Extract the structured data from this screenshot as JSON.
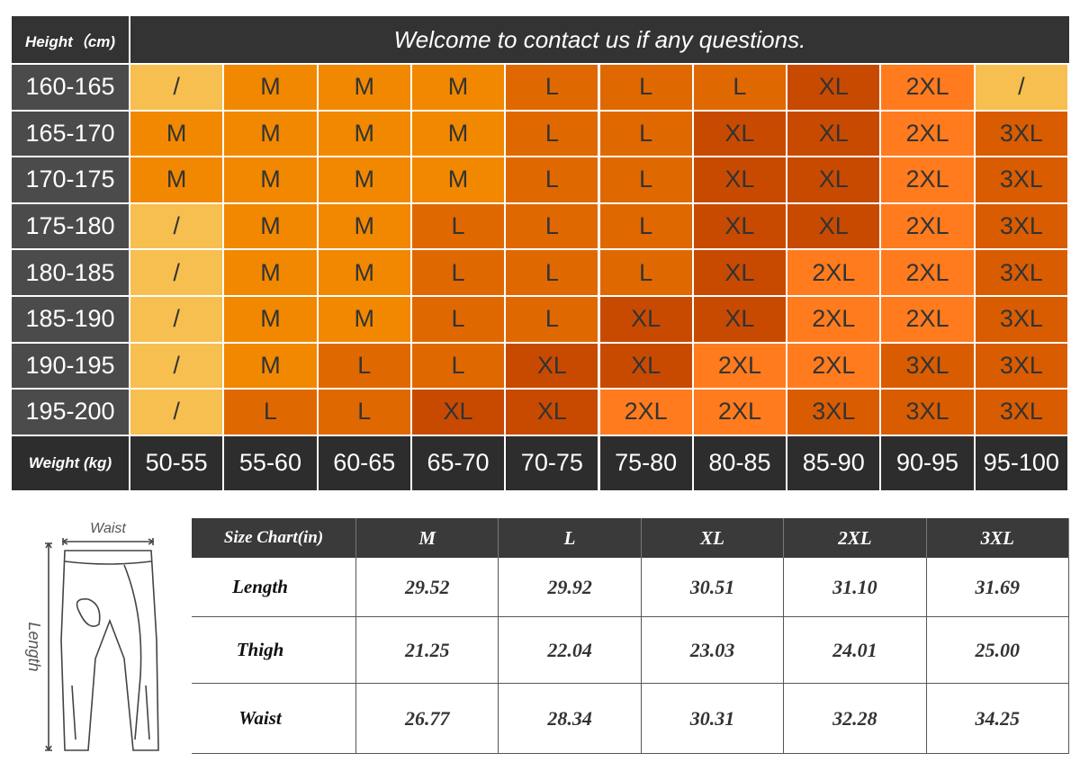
{
  "size_table": {
    "height_header": "Height（cm)",
    "note": "Welcome to contact us if any questions.",
    "weight_header": "Weight (kg)",
    "heights": [
      "160-165",
      "165-170",
      "170-175",
      "175-180",
      "180-185",
      "185-190",
      "190-195",
      "195-200"
    ],
    "weights": [
      "50-55",
      "55-60",
      "60-65",
      "65-70",
      "70-75",
      "75-80",
      "80-85",
      "85-90",
      "90-95",
      "95-100"
    ],
    "rows": [
      [
        "/",
        "M",
        "M",
        "M",
        "L",
        "L",
        "L",
        "XL",
        "2XL",
        "/"
      ],
      [
        "M",
        "M",
        "M",
        "M",
        "L",
        "L",
        "XL",
        "XL",
        "2XL",
        "3XL"
      ],
      [
        "M",
        "M",
        "M",
        "M",
        "L",
        "L",
        "XL",
        "XL",
        "2XL",
        "3XL"
      ],
      [
        "/",
        "M",
        "M",
        "L",
        "L",
        "L",
        "XL",
        "XL",
        "2XL",
        "3XL"
      ],
      [
        "/",
        "M",
        "M",
        "L",
        "L",
        "L",
        "XL",
        "2XL",
        "2XL",
        "3XL"
      ],
      [
        "/",
        "M",
        "M",
        "L",
        "L",
        "XL",
        "XL",
        "2XL",
        "2XL",
        "3XL"
      ],
      [
        "/",
        "M",
        "L",
        "L",
        "XL",
        "XL",
        "2XL",
        "2XL",
        "3XL",
        "3XL"
      ],
      [
        "/",
        "L",
        "L",
        "XL",
        "XL",
        "2XL",
        "2XL",
        "3XL",
        "3XL",
        "3XL"
      ]
    ],
    "colors": {
      "/": "#f7bf4f",
      "M": "#f18800",
      "L": "#e06800",
      "XL": "#c84a00",
      "2XL": "#ff7b1d",
      "3XL": "#d95c00"
    }
  },
  "inch_table": {
    "header": [
      "Size Chart(in)",
      "M",
      "L",
      "XL",
      "2XL",
      "3XL"
    ],
    "rows": [
      {
        "label": "Length",
        "values": [
          "29.52",
          "29.92",
          "30.51",
          "31.10",
          "31.69"
        ]
      },
      {
        "label": "Thigh",
        "values": [
          "21.25",
          "22.04",
          "23.03",
          "24.01",
          "25.00"
        ]
      },
      {
        "label": "Waist",
        "values": [
          "26.77",
          "28.34",
          "30.31",
          "32.28",
          "34.25"
        ]
      }
    ]
  },
  "diagram": {
    "waist": "Waist",
    "length": "Length"
  }
}
